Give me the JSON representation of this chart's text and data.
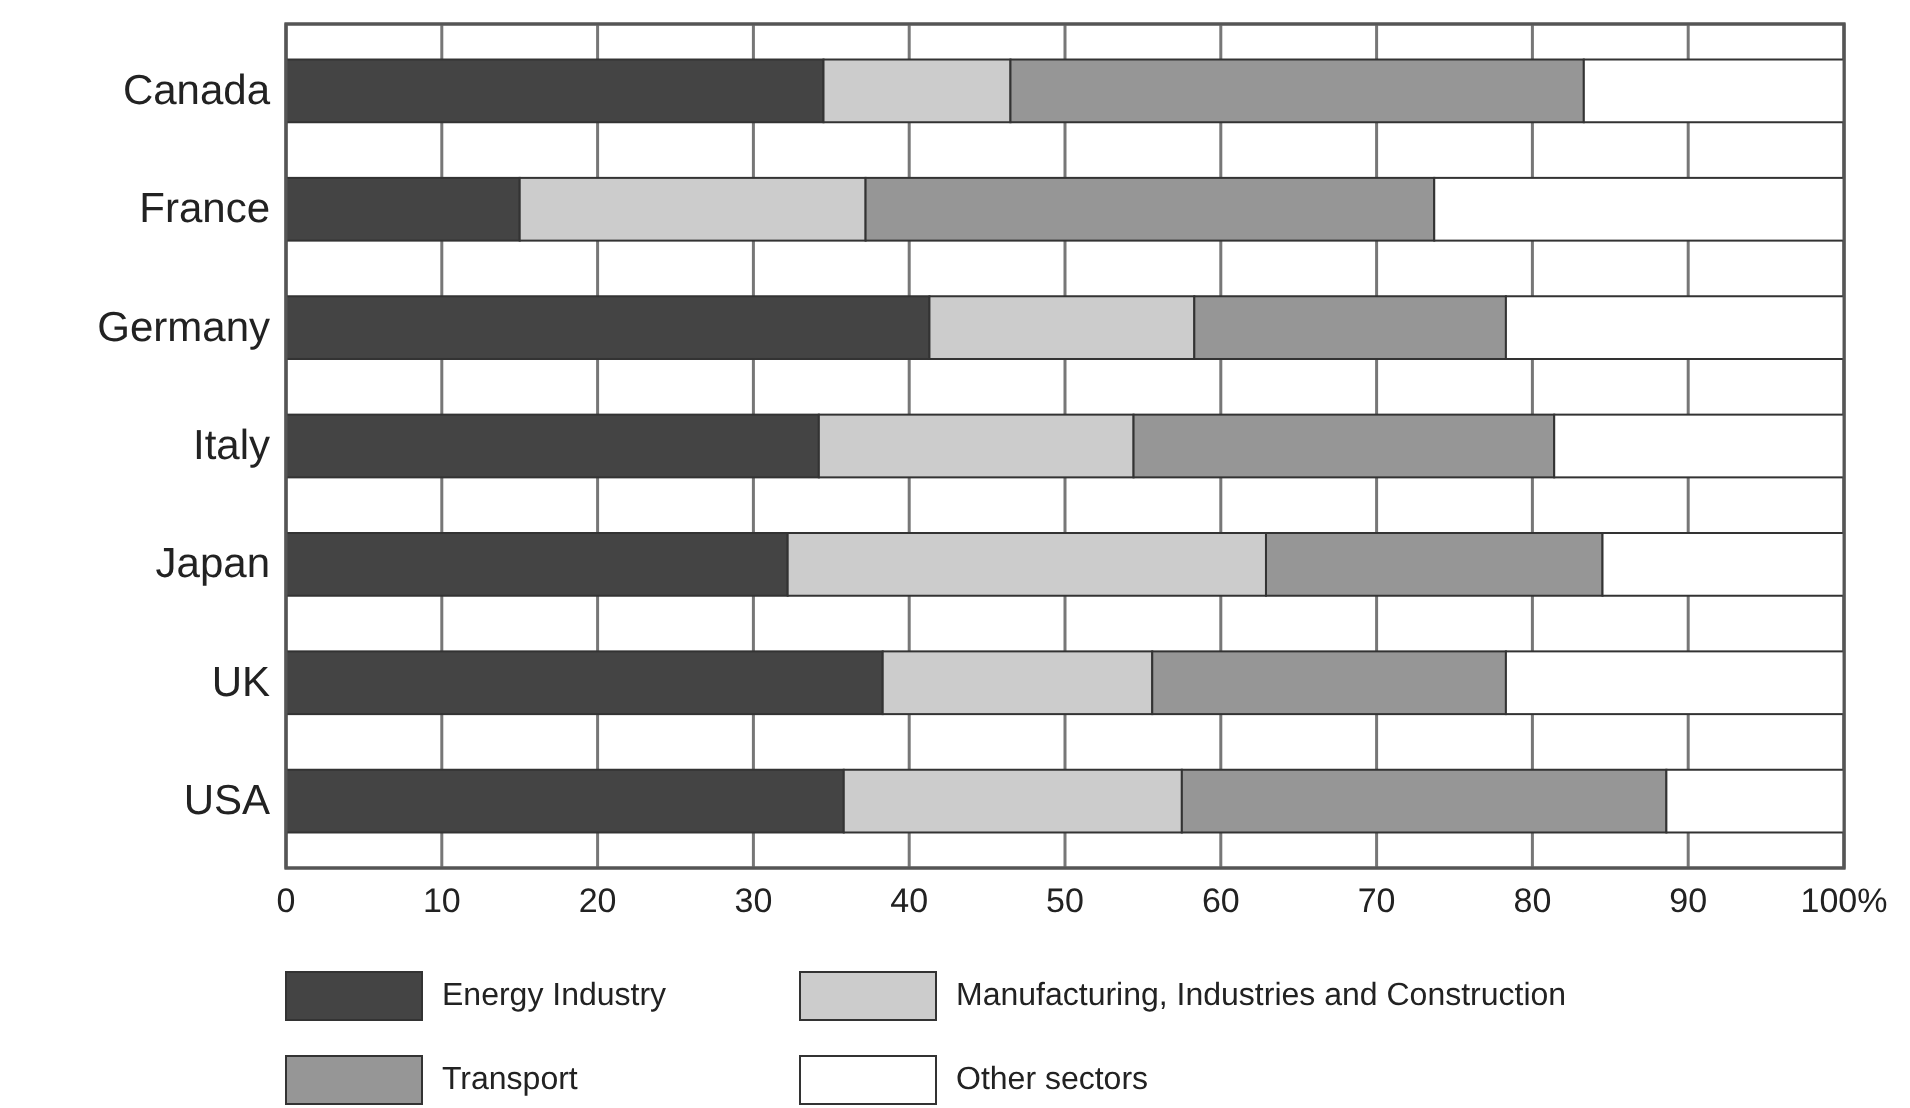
{
  "chart_data": {
    "type": "bar",
    "orientation": "horizontal",
    "stacked": true,
    "categories": [
      "Canada",
      "France",
      "Germany",
      "Italy",
      "Japan",
      "UK",
      "USA"
    ],
    "series": [
      {
        "name": "Energy Industry",
        "color": "#444444",
        "values": [
          34.5,
          15.0,
          41.3,
          34.2,
          32.2,
          38.3,
          35.8
        ]
      },
      {
        "name": "Manufacturing, Industries and Construction",
        "color": "#cccccc",
        "values": [
          12.0,
          22.2,
          17.0,
          20.2,
          30.7,
          17.3,
          21.7
        ]
      },
      {
        "name": "Transport",
        "color": "#969696",
        "values": [
          36.8,
          36.5,
          20.0,
          27.0,
          21.6,
          22.7,
          31.1
        ]
      },
      {
        "name": "Other sectors",
        "color": "#ffffff",
        "values": [
          16.7,
          26.3,
          21.7,
          18.6,
          15.5,
          21.7,
          11.4
        ]
      }
    ],
    "xlim": [
      0,
      100
    ],
    "xticks": [
      0,
      10,
      20,
      30,
      40,
      50,
      60,
      70,
      80,
      90,
      {
        "value": 100,
        "label": "100%"
      }
    ],
    "grid": "x",
    "legend": "bottom"
  }
}
